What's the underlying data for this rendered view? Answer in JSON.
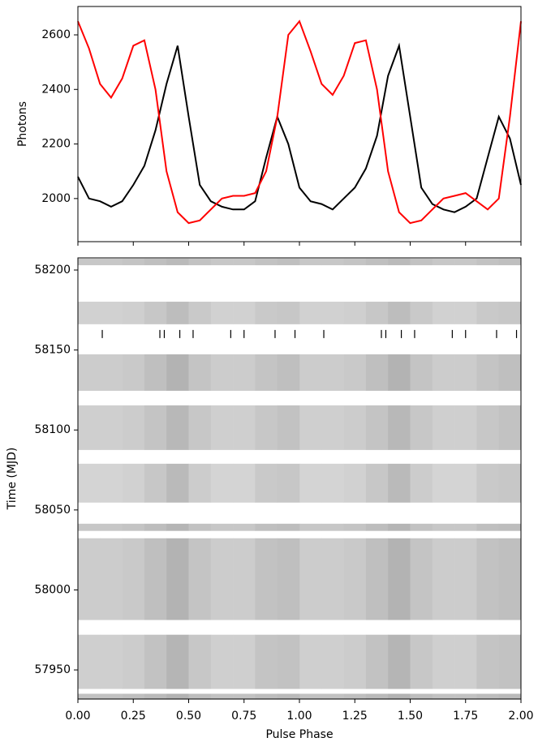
{
  "chart_data": [
    {
      "type": "line",
      "ylabel": "Photons",
      "xlim": [
        0,
        2
      ],
      "ylim": [
        1842,
        2704
      ],
      "yticks": [
        2000,
        2200,
        2400,
        2600
      ],
      "x": [
        0,
        0.05,
        0.1,
        0.15,
        0.2,
        0.25,
        0.3,
        0.35,
        0.4,
        0.45,
        0.5,
        0.55,
        0.6,
        0.65,
        0.7,
        0.75,
        0.8,
        0.85,
        0.9,
        0.95,
        1,
        1.05,
        1.1,
        1.15,
        1.2,
        1.25,
        1.3,
        1.35,
        1.4,
        1.45,
        1.5,
        1.55,
        1.6,
        1.65,
        1.7,
        1.75,
        1.8,
        1.85,
        1.9,
        1.95,
        2
      ],
      "series": [
        {
          "color": "#000000",
          "values": [
            2080,
            2000,
            1990,
            1970,
            1990,
            2050,
            2120,
            2250,
            2420,
            2560,
            2300,
            2050,
            1990,
            1970,
            1960,
            1960,
            1990,
            2150,
            2300,
            2200,
            2040,
            1990,
            1980,
            1960,
            2000,
            2040,
            2110,
            2230,
            2450,
            2560,
            2300,
            2040,
            1980,
            1960,
            1950,
            1970,
            2000,
            2150,
            2300,
            2220,
            2050
          ]
        },
        {
          "color": "#ff0000",
          "values": [
            2650,
            2550,
            2420,
            2370,
            2440,
            2560,
            2580,
            2400,
            2100,
            1950,
            1910,
            1920,
            1960,
            2000,
            2010,
            2010,
            2020,
            2100,
            2300,
            2600,
            2650,
            2540,
            2420,
            2380,
            2450,
            2570,
            2580,
            2400,
            2100,
            1950,
            1910,
            1920,
            1960,
            2000,
            2010,
            2020,
            1990,
            1960,
            2000,
            2300,
            2650
          ]
        }
      ]
    },
    {
      "type": "heatmap",
      "xlabel": "Pulse Phase",
      "ylabel": "Time (MJD)",
      "xlim": [
        0,
        2
      ],
      "ylim": [
        57931.8,
        58207.6
      ],
      "xticks": [
        {
          "value": 0,
          "label": "0.00"
        },
        {
          "value": 0.25,
          "label": "0.25"
        },
        {
          "value": 0.5,
          "label": "0.50"
        },
        {
          "value": 0.75,
          "label": "0.75"
        },
        {
          "value": 1,
          "label": "1.00"
        },
        {
          "value": 1.25,
          "label": "1.25"
        },
        {
          "value": 1.5,
          "label": "1.50"
        },
        {
          "value": 1.75,
          "label": "1.75"
        },
        {
          "value": 2,
          "label": "2.00"
        }
      ],
      "yticks": [
        57950,
        58000,
        58050,
        58100,
        58150,
        58200
      ],
      "colormap": "gray_r",
      "phase_bins": [
        0,
        0.1,
        0.2,
        0.3,
        0.4,
        0.5,
        0.6,
        0.7,
        0.8,
        0.9,
        1
      ],
      "time_bands": [
        [
          58203.0,
          58207.1
        ],
        [
          58166.1,
          58180.2
        ],
        [
          58124.5,
          58147.3
        ],
        [
          58087.5,
          58115.4
        ],
        [
          58054.6,
          58078.9
        ],
        [
          58036.9,
          58041.4
        ],
        [
          57981.2,
          58032.3
        ],
        [
          57938.1,
          57972.0
        ],
        [
          57931.5,
          57935.1
        ]
      ],
      "intensity": [
        [
          0.22,
          0.22,
          0.23,
          0.25,
          0.27,
          0.24,
          0.22,
          0.22,
          0.24,
          0.25
        ],
        [
          0.18,
          0.18,
          0.19,
          0.22,
          0.26,
          0.21,
          0.18,
          0.18,
          0.21,
          0.22
        ],
        [
          0.2,
          0.2,
          0.21,
          0.25,
          0.3,
          0.23,
          0.2,
          0.2,
          0.23,
          0.25
        ],
        [
          0.19,
          0.19,
          0.2,
          0.23,
          0.28,
          0.22,
          0.19,
          0.19,
          0.22,
          0.24
        ],
        [
          0.17,
          0.17,
          0.18,
          0.22,
          0.27,
          0.2,
          0.17,
          0.17,
          0.21,
          0.22
        ],
        [
          0.22,
          0.22,
          0.23,
          0.26,
          0.29,
          0.24,
          0.22,
          0.22,
          0.25,
          0.26
        ],
        [
          0.2,
          0.2,
          0.21,
          0.25,
          0.3,
          0.23,
          0.2,
          0.2,
          0.24,
          0.25
        ],
        [
          0.19,
          0.19,
          0.2,
          0.24,
          0.29,
          0.22,
          0.19,
          0.19,
          0.23,
          0.24
        ],
        [
          0.24,
          0.24,
          0.25,
          0.27,
          0.3,
          0.26,
          0.24,
          0.24,
          0.26,
          0.27
        ]
      ],
      "event_phases": [
        0.11,
        0.37,
        0.39,
        0.46,
        0.52,
        0.69,
        0.75,
        0.89,
        0.98,
        1.11,
        1.37,
        1.39,
        1.46,
        1.52,
        1.69,
        1.75,
        1.89,
        1.98
      ],
      "event_time": 58160
    }
  ]
}
